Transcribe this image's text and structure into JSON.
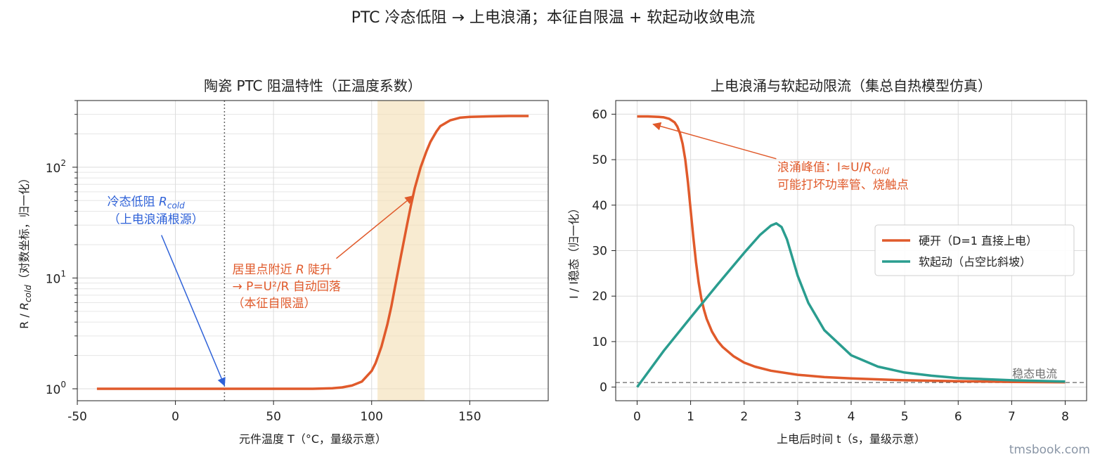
{
  "page": {
    "suptitle": "PTC 冷态低阻 → 上电浪涌；本征自限温 + 软起动收敛电流",
    "watermark": "tmsbook.com"
  },
  "chart_data": [
    {
      "type": "line",
      "title": "陶瓷 PTC 阻温特性（正温度系数）",
      "xlabel": "元件温度 T（°C，量级示意）",
      "ylabel_prefix": "R / ",
      "ylabel_var": "R",
      "ylabel_sub": "cold",
      "ylabel_suffix": "（对数坐标，归一化）",
      "xlim": [
        -50,
        190
      ],
      "ylim": [
        0.78,
        400
      ],
      "yscale": "log",
      "grid": true,
      "xticks": [
        -50,
        0,
        50,
        100,
        150
      ],
      "yticks": [
        {
          "value": 1,
          "base": "10",
          "exp": "0"
        },
        {
          "value": 10,
          "base": "10",
          "exp": "1"
        },
        {
          "value": 100,
          "base": "10",
          "exp": "2"
        }
      ],
      "color": "#e05a2b",
      "series": [
        {
          "x": [
            -40,
            -20,
            0,
            20,
            40,
            60,
            70,
            80,
            85,
            90,
            95,
            100,
            102,
            105,
            108,
            110,
            112,
            115,
            118,
            120,
            122,
            125,
            128,
            130,
            133,
            135,
            140,
            145,
            150,
            160,
            170,
            180
          ],
          "y": [
            1.0,
            1.0,
            1.0,
            1.0,
            1.0,
            1.0,
            1.0,
            1.01,
            1.03,
            1.07,
            1.16,
            1.45,
            1.7,
            2.4,
            3.8,
            5.5,
            8.5,
            16,
            30,
            45,
            65,
            100,
            140,
            170,
            210,
            235,
            265,
            280,
            285,
            288,
            290,
            290
          ]
        }
      ],
      "span": {
        "x0": 103,
        "x1": 127,
        "color": "#f3ddb3"
      },
      "vline": {
        "x": 25,
        "color": "#666666"
      },
      "annotations": [
        {
          "lines": [
            {
              "pre": "冷态低阻 ",
              "var": "R",
              "sub": "cold"
            },
            {
              "pre": "（上电浪涌根源）"
            }
          ],
          "color": "#2f62d8",
          "text_at": [
            -15,
            45
          ],
          "target": [
            25,
            1.07
          ]
        },
        {
          "lines": [
            {
              "pre": "居里点附近 ",
              "var": "R",
              "post": " 陡升"
            },
            {
              "pre": "→ P=U²/R 自动回落"
            },
            {
              "pre": "（本征自限温）"
            }
          ],
          "color": "#e05a2b",
          "text_at": [
            29,
            11
          ],
          "source": [
            82,
            15
          ],
          "target": [
            121,
            55
          ]
        }
      ]
    },
    {
      "type": "line",
      "title": "上电浪涌与软起动限流（集总自热模型仿真）",
      "xlabel": "上电后时间 t（s，量级示意）",
      "ylabel": "I / I稳态（归一化）",
      "xlim": [
        -0.4,
        8.4
      ],
      "ylim": [
        -3,
        63
      ],
      "grid": true,
      "xticks": [
        0,
        1,
        2,
        3,
        4,
        5,
        6,
        7,
        8
      ],
      "yticks": [
        0,
        10,
        20,
        30,
        40,
        50,
        60
      ],
      "legend_position": "center-right",
      "hline": {
        "y": 1,
        "label": "稳态电流",
        "color": "#666666"
      },
      "series": [
        {
          "name": "硬开（D=1 直接上电）",
          "color": "#e05a2b",
          "x": [
            0,
            0.2,
            0.4,
            0.5,
            0.6,
            0.7,
            0.75,
            0.8,
            0.85,
            0.9,
            0.95,
            1.0,
            1.05,
            1.1,
            1.15,
            1.2,
            1.25,
            1.3,
            1.4,
            1.5,
            1.6,
            1.8,
            2.0,
            2.2,
            2.5,
            3.0,
            3.5,
            4.0,
            5.0,
            6.0,
            7.0,
            8.0
          ],
          "y": [
            59.5,
            59.5,
            59.4,
            59.3,
            59.0,
            58.2,
            57.3,
            55.8,
            53.5,
            50.0,
            45.0,
            39.0,
            33.0,
            27.5,
            23.0,
            19.5,
            17.0,
            15.0,
            12.2,
            10.2,
            8.8,
            6.8,
            5.4,
            4.5,
            3.6,
            2.7,
            2.2,
            1.9,
            1.5,
            1.3,
            1.15,
            1.05
          ]
        },
        {
          "name": "软起动（占空比斜坡）",
          "color": "#2a9d8f",
          "x": [
            0,
            0.5,
            1.0,
            1.5,
            2.0,
            2.3,
            2.5,
            2.6,
            2.7,
            2.8,
            2.9,
            3.0,
            3.2,
            3.5,
            4.0,
            4.5,
            5.0,
            5.5,
            6.0,
            7.0,
            8.0
          ],
          "y": [
            0,
            8.0,
            15.3,
            22.5,
            29.5,
            33.5,
            35.5,
            36.0,
            35.2,
            32.5,
            28.5,
            24.5,
            18.5,
            12.5,
            7.0,
            4.5,
            3.2,
            2.5,
            2.0,
            1.5,
            1.2
          ]
        }
      ],
      "annotations": [
        {
          "lines": [
            {
              "pre": "浪涌峰值：I≈U/",
              "var": "R",
              "sub": "cold"
            },
            {
              "pre": "可能打坏功率管、烧触点"
            }
          ],
          "color": "#e05a2b",
          "text_at": [
            2.62,
            47.5
          ],
          "source": [
            2.6,
            50.2
          ],
          "target": [
            0.3,
            57.8
          ]
        }
      ]
    }
  ]
}
